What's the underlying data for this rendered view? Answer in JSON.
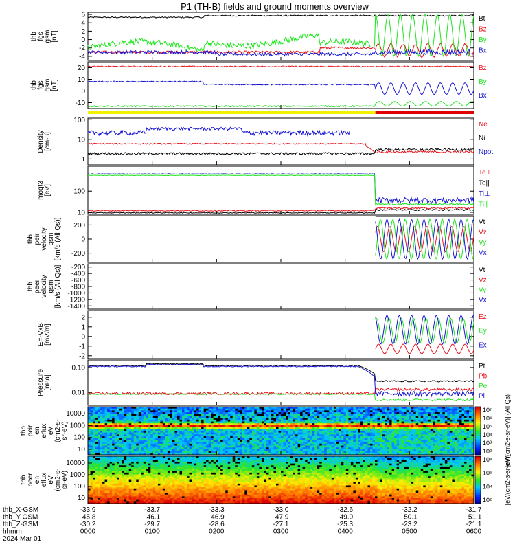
{
  "title": "P1 (TH-B) fields and ground moments overview",
  "colors": {
    "black": "#000000",
    "red": "#e8121a",
    "green": "#19e619",
    "blue": "#1414d2",
    "yellow": "#f0f000",
    "bar_red": "#e00000"
  },
  "chart_data": [
    {
      "id": "fgs_gsm",
      "type": "line",
      "ylabel": [
        "thb",
        "fgs",
        "gsm",
        "[nT]"
      ],
      "y_ticks": [
        "6",
        "4",
        "2",
        "0",
        "-2",
        "-4"
      ],
      "ylim": [
        -5,
        6.5
      ],
      "series": [
        {
          "name": "Bt",
          "color": "black"
        },
        {
          "name": "Bz",
          "color": "red"
        },
        {
          "name": "By",
          "color": "green"
        },
        {
          "name": "Bx",
          "color": "blue"
        }
      ]
    },
    {
      "id": "fgs_gsm_dsl",
      "type": "line",
      "ylabel": [
        "thb",
        "fgs",
        "gsm",
        "[nT]"
      ],
      "y_ticks": [
        "20",
        "10",
        "0",
        "-10"
      ],
      "ylim": [
        -15,
        25
      ],
      "series": [
        {
          "name": "Bz",
          "color": "red"
        },
        {
          "name": "By",
          "color": "green"
        },
        {
          "name": "Bx",
          "color": "blue"
        }
      ]
    },
    {
      "id": "density",
      "type": "line",
      "scale": "log",
      "ylabel": [
        "Density",
        "[cm-3]"
      ],
      "y_ticks": [
        "100",
        "10",
        "1"
      ],
      "ylim": [
        0.5,
        120
      ],
      "series": [
        {
          "name": "Ne",
          "color": "red"
        },
        {
          "name": "Ni",
          "color": "black"
        },
        {
          "name": "Npot",
          "color": "blue"
        }
      ]
    },
    {
      "id": "temperature",
      "type": "line",
      "scale": "log",
      "ylabel": [
        "moqt3",
        "[eV]"
      ],
      "y_ticks": [
        "100",
        "10"
      ],
      "ylim": [
        8,
        1500
      ],
      "series": [
        {
          "name": "Te⊥",
          "color": "red"
        },
        {
          "name": "Te||",
          "color": "black"
        },
        {
          "name": "Ti⊥",
          "color": "blue"
        },
        {
          "name": "Ti||",
          "color": "green"
        }
      ]
    },
    {
      "id": "peir_velocity",
      "type": "line",
      "ylabel": [
        "thb",
        "peir",
        "velocity",
        "gsm",
        "[km/s (All Qs)]"
      ],
      "y_ticks": [
        "200",
        "0",
        "-200"
      ],
      "ylim": [
        -330,
        330
      ],
      "series": [
        {
          "name": "Vt",
          "color": "black"
        },
        {
          "name": "Vz",
          "color": "red"
        },
        {
          "name": "Vy",
          "color": "green"
        },
        {
          "name": "Vx",
          "color": "blue"
        }
      ]
    },
    {
      "id": "peer_velocity",
      "type": "line",
      "ylabel": [
        "thb",
        "peer",
        "velocity",
        "gsm",
        "[km/s (All Qs)]"
      ],
      "y_ticks": [
        "-200",
        "-400",
        "-600",
        "-800",
        "-1000",
        "-1200",
        "-1400"
      ],
      "ylim": [
        -1500,
        -100
      ],
      "series": [
        {
          "name": "Vt",
          "color": "black"
        },
        {
          "name": "Vz",
          "color": "red"
        },
        {
          "name": "Vy",
          "color": "green"
        },
        {
          "name": "Vx",
          "color": "blue"
        }
      ]
    },
    {
      "id": "efield",
      "type": "line",
      "ylabel": [
        "E=-VxB",
        "[mV/m]"
      ],
      "y_ticks": [
        "2",
        "1",
        "0",
        "-1",
        "-2"
      ],
      "ylim": [
        -2.3,
        2.7
      ],
      "series": [
        {
          "name": "Ez",
          "color": "red"
        },
        {
          "name": "Ey",
          "color": "green"
        },
        {
          "name": "Ex",
          "color": "blue"
        }
      ]
    },
    {
      "id": "pressure",
      "type": "line",
      "scale": "log",
      "ylabel": [
        "Pressure",
        "[nPa]"
      ],
      "y_ticks": [
        "0.10",
        "0.01"
      ],
      "ylim": [
        0.003,
        0.2
      ],
      "series": [
        {
          "name": "Pt",
          "color": "black"
        },
        {
          "name": "Pb",
          "color": "red"
        },
        {
          "name": "Pe",
          "color": "green"
        },
        {
          "name": "Pi",
          "color": "blue"
        }
      ]
    },
    {
      "id": "peir_spectrogram",
      "type": "heatmap",
      "ylabel": [
        "thb",
        "peir",
        "en",
        "eflux",
        "eV",
        "(cm2-s-",
        "sr-eV)"
      ],
      "y_ticks": [
        "10000",
        "1000",
        "100",
        "10"
      ],
      "colorbar_ticks": [
        "10⁷",
        "10⁶",
        "10⁵",
        "10⁴",
        "10³",
        "10²"
      ],
      "colorbar_label": "[eV/(cm2-s-sr-eV)] (All Qs)"
    },
    {
      "id": "peer_spectrogram",
      "type": "heatmap",
      "ylabel": [
        "thb",
        "peer",
        "en",
        "eflux",
        "eV",
        "(cm2-s-",
        "sr-eV)"
      ],
      "y_ticks": [
        "10000",
        "1000",
        "100",
        "10"
      ],
      "colorbar_ticks": [
        "10⁸",
        "10⁶",
        "10⁴",
        "10²"
      ],
      "colorbar_label": "[eV/(cm2-s-sr-eV)]"
    }
  ],
  "x_axis": {
    "time_ticks": [
      "0000",
      "0100",
      "0200",
      "0300",
      "0400",
      "0500",
      "0600"
    ],
    "ephemeris_rows": [
      {
        "label": "thb_X-GSM",
        "values": [
          "-33.9",
          "-33.7",
          "-33.3",
          "-33.0",
          "-32.6",
          "-32.2",
          "-31.7"
        ]
      },
      {
        "label": "thb_Y-GSM",
        "values": [
          "-45.8",
          "-46.1",
          "-46.9",
          "-47.9",
          "-49.0",
          "-50.1",
          "-51.1"
        ]
      },
      {
        "label": "thb_Z-GSM",
        "values": [
          "-30.2",
          "-29.7",
          "-28.6",
          "-27.1",
          "-25.3",
          "-23.2",
          "-21.1"
        ]
      },
      {
        "label": "hhmm",
        "values": [
          "0000",
          "0100",
          "0200",
          "0300",
          "0400",
          "0500",
          "0600"
        ]
      },
      {
        "label": "2024 Mar 01",
        "values": []
      }
    ]
  }
}
